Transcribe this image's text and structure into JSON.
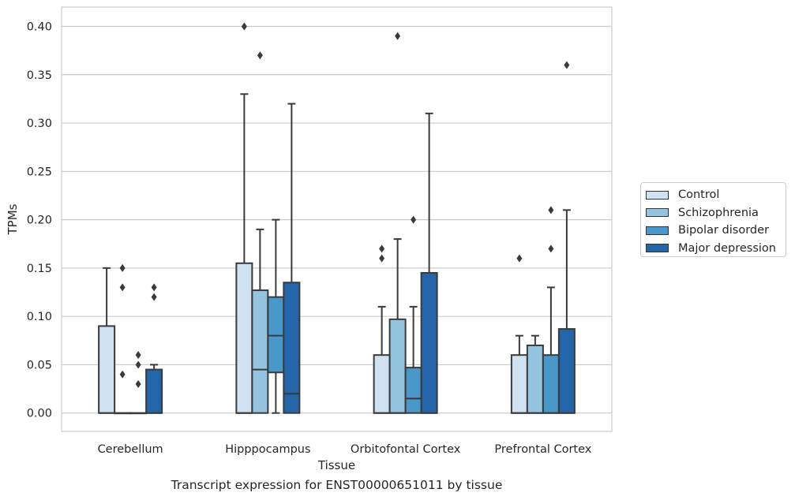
{
  "chart_data": {
    "type": "box",
    "categories": [
      "Cerebellum",
      "Hipppocampus",
      "Orbitofontal Cortex",
      "Prefrontal Cortex"
    ],
    "xlabel": "Tissue",
    "ylabel": "TPMs",
    "ylim": [
      -0.019,
      0.42
    ],
    "yticks": [
      "0.00",
      "0.05",
      "0.10",
      "0.15",
      "0.20",
      "0.25",
      "0.30",
      "0.35",
      "0.40"
    ],
    "grid": true,
    "legend_position": "right",
    "series": [
      {
        "name": "Control",
        "color": "#d0e1f2",
        "boxes": [
          {
            "min": 0,
            "q1": 0,
            "median": 0,
            "q3": 0.09,
            "max": 0.15,
            "outliers": []
          },
          {
            "min": 0,
            "q1": 0,
            "median": 0,
            "q3": 0.155,
            "max": 0.33,
            "outliers": [
              0.4
            ]
          },
          {
            "min": 0,
            "q1": 0,
            "median": 0,
            "q3": 0.06,
            "max": 0.11,
            "outliers": [
              0.16,
              0.17
            ]
          },
          {
            "min": 0,
            "q1": 0,
            "median": 0,
            "q3": 0.06,
            "max": 0.08,
            "outliers": [
              0.16
            ]
          }
        ]
      },
      {
        "name": "Schizophrenia",
        "color": "#94c4df",
        "boxes": [
          {
            "min": 0,
            "q1": 0,
            "median": 0,
            "q3": 0,
            "max": 0,
            "outliers": [
              0.04,
              0.13,
              0.15
            ]
          },
          {
            "min": 0,
            "q1": 0,
            "median": 0.045,
            "q3": 0.127,
            "max": 0.19,
            "outliers": [
              0.37
            ]
          },
          {
            "min": 0,
            "q1": 0,
            "median": 0,
            "q3": 0.097,
            "max": 0.18,
            "outliers": [
              0.39
            ]
          },
          {
            "min": 0,
            "q1": 0,
            "median": 0,
            "q3": 0.07,
            "max": 0.08,
            "outliers": []
          }
        ]
      },
      {
        "name": "Bipolar disorder",
        "color": "#4a98c9",
        "boxes": [
          {
            "min": 0,
            "q1": 0,
            "median": 0,
            "q3": 0,
            "max": 0,
            "outliers": [
              0.03,
              0.05,
              0.06
            ]
          },
          {
            "min": 0,
            "q1": 0.042,
            "median": 0.08,
            "q3": 0.12,
            "max": 0.2,
            "outliers": []
          },
          {
            "min": 0,
            "q1": 0,
            "median": 0.015,
            "q3": 0.047,
            "max": 0.11,
            "outliers": [
              0.2
            ]
          },
          {
            "min": 0,
            "q1": 0,
            "median": 0,
            "q3": 0.06,
            "max": 0.13,
            "outliers": [
              0.17,
              0.21
            ]
          }
        ]
      },
      {
        "name": "Major depression",
        "color": "#2464a8",
        "boxes": [
          {
            "min": 0,
            "q1": 0,
            "median": 0,
            "q3": 0.045,
            "max": 0.05,
            "outliers": [
              0.12,
              0.13
            ]
          },
          {
            "min": 0,
            "q1": 0,
            "median": 0.02,
            "q3": 0.135,
            "max": 0.32,
            "outliers": []
          },
          {
            "min": 0,
            "q1": 0,
            "median": 0,
            "q3": 0.145,
            "max": 0.31,
            "outliers": []
          },
          {
            "min": 0,
            "q1": 0,
            "median": 0,
            "q3": 0.087,
            "max": 0.21,
            "outliers": [
              0.36
            ]
          }
        ]
      }
    ]
  },
  "caption": "Transcript expression for ENST00000651011 by tissue"
}
